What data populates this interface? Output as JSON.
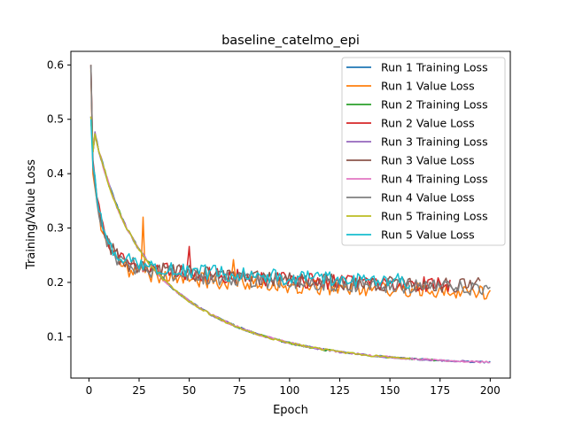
{
  "chart_data": {
    "type": "line",
    "title": "baseline_catelmo_epi",
    "xlabel": "Epoch",
    "ylabel": "Training/Value Loss",
    "xlim": [
      -9,
      210
    ],
    "ylim": [
      0.024,
      0.625
    ],
    "xticks": [
      0,
      25,
      50,
      75,
      100,
      125,
      150,
      175,
      200
    ],
    "yticks": [
      0.1,
      0.2,
      0.3,
      0.4,
      0.5,
      0.6
    ],
    "ytick_labels": [
      "0.1",
      "0.2",
      "0.3",
      "0.4",
      "0.5",
      "0.6"
    ],
    "grid": false,
    "legend_position": "top-right",
    "series": [
      {
        "name": "Run 1 Training Loss",
        "color": "#1f77b4",
        "kind": "train",
        "epochs": 200,
        "y0": 0.505,
        "seed": 11
      },
      {
        "name": "Run 1 Value Loss",
        "color": "#ff7f0e",
        "kind": "val",
        "epochs": 200,
        "y0": 0.59,
        "end": 0.179,
        "seed": 12,
        "spikes": [
          [
            27,
            0.32
          ],
          [
            72,
            0.242
          ]
        ]
      },
      {
        "name": "Run 2 Training Loss",
        "color": "#2ca02c",
        "kind": "train",
        "epochs": 180,
        "y0": 0.505,
        "seed": 21
      },
      {
        "name": "Run 2 Value Loss",
        "color": "#d62728",
        "kind": "val",
        "epochs": 180,
        "y0": 0.6,
        "end": 0.19,
        "seed": 22,
        "spikes": [
          [
            50,
            0.266
          ]
        ]
      },
      {
        "name": "Run 3 Training Loss",
        "color": "#9467bd",
        "kind": "train",
        "epochs": 195,
        "y0": 0.505,
        "seed": 31
      },
      {
        "name": "Run 3 Value Loss",
        "color": "#8c564b",
        "kind": "val",
        "epochs": 195,
        "y0": 0.6,
        "end": 0.19,
        "seed": 32,
        "spikes": []
      },
      {
        "name": "Run 4 Training Loss",
        "color": "#e377c2",
        "kind": "train",
        "epochs": 200,
        "y0": 0.505,
        "seed": 41
      },
      {
        "name": "Run 4 Value Loss",
        "color": "#7f7f7f",
        "kind": "val",
        "epochs": 200,
        "y0": 0.6,
        "end": 0.186,
        "seed": 42,
        "spikes": []
      },
      {
        "name": "Run 5 Training Loss",
        "color": "#bcbd22",
        "kind": "train",
        "epochs": 160,
        "y0": 0.505,
        "seed": 51
      },
      {
        "name": "Run 5 Value Loss",
        "color": "#17becf",
        "kind": "val",
        "epochs": 160,
        "y0": 0.5,
        "end": 0.195,
        "seed": 52,
        "spikes": []
      }
    ]
  }
}
